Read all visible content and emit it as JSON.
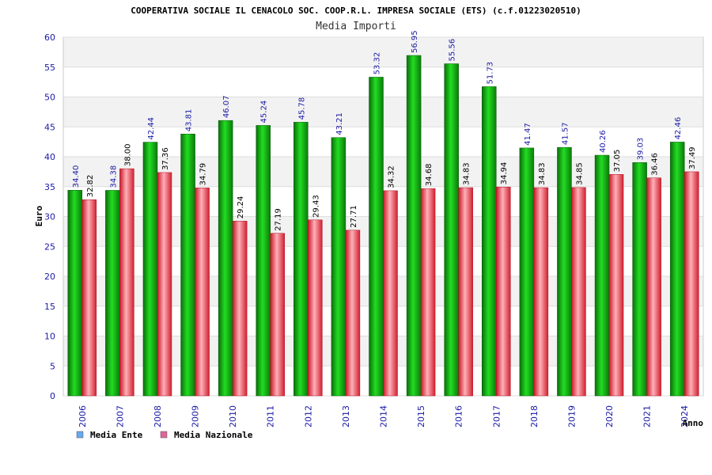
{
  "chart_data": {
    "type": "bar",
    "title": "COOPERATIVA SOCIALE IL CENACOLO SOC. COOP.R.L. IMPRESA SOCIALE (ETS) (c.f.01223020510)",
    "subtitle": "Media Importi",
    "xlabel": "Anno",
    "ylabel": "Euro",
    "ylim": [
      0,
      60
    ],
    "yticks": [
      0,
      5,
      10,
      15,
      20,
      25,
      30,
      35,
      40,
      45,
      50,
      55,
      60
    ],
    "grid": true,
    "legend_position": "bottom-left",
    "categories": [
      "2006",
      "2007",
      "2008",
      "2009",
      "2010",
      "2011",
      "2012",
      "2013",
      "2014",
      "2015",
      "2016",
      "2017",
      "2018",
      "2019",
      "2020",
      "2021",
      "2024"
    ],
    "series": [
      {
        "name": "Media Ente",
        "color": "#00aa00",
        "legend_color": "#66aaee",
        "values": [
          34.4,
          34.38,
          42.44,
          43.81,
          46.07,
          45.24,
          45.78,
          43.21,
          53.32,
          56.95,
          55.56,
          51.73,
          41.47,
          41.57,
          40.26,
          39.03,
          42.46
        ],
        "labels": [
          "34.40",
          "34.38",
          "42.44",
          "43.81",
          "46.07",
          "45.24",
          "45.78",
          "43.21",
          "53.32",
          "56.95",
          "55.56",
          "51.73",
          "41.47",
          "41.57",
          "40.26",
          "39.03",
          "42.46"
        ]
      },
      {
        "name": "Media Nazionale",
        "color": "#e83040",
        "legend_color": "#dd6699",
        "values": [
          32.82,
          38.0,
          37.36,
          34.79,
          29.24,
          27.19,
          29.43,
          27.71,
          34.32,
          34.68,
          34.83,
          34.94,
          34.83,
          34.85,
          37.05,
          36.46,
          37.49
        ],
        "labels": [
          "32.82",
          "38.00",
          "37.36",
          "34.79",
          "29.24",
          "27.19",
          "29.43",
          "27.71",
          "34.32",
          "34.68",
          "34.83",
          "34.94",
          "34.83",
          "34.85",
          "37.05",
          "36.46",
          "37.49"
        ]
      }
    ]
  }
}
